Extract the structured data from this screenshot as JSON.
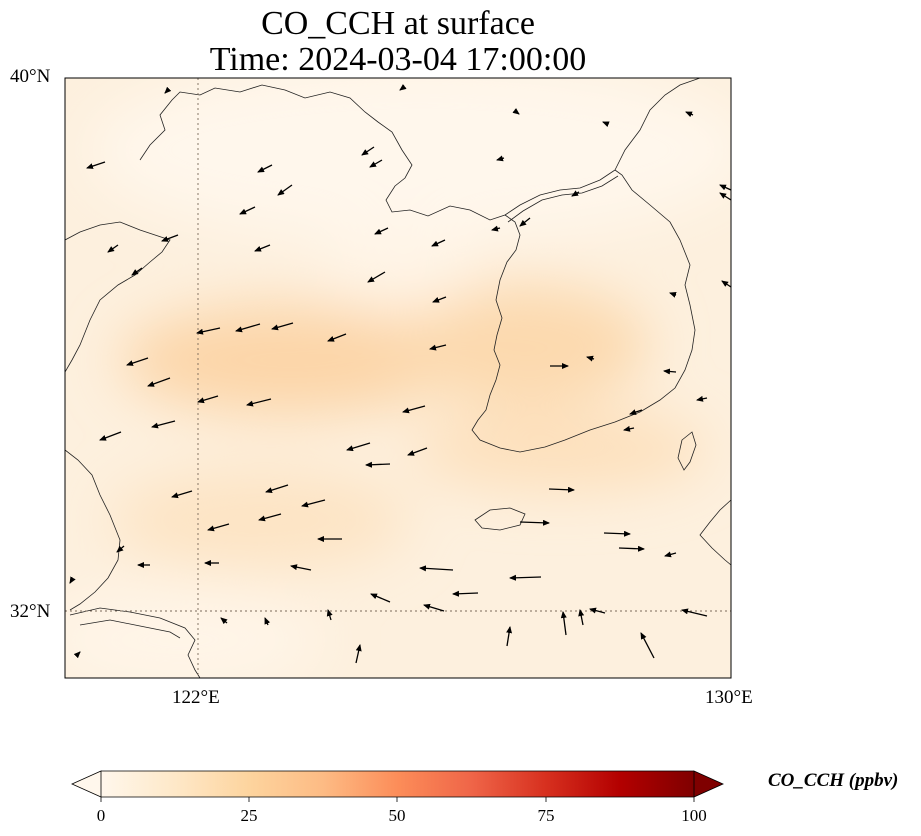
{
  "title": {
    "line1": "CO_CCH at surface",
    "line2": "Time: 2024-03-04 17:00:00"
  },
  "map": {
    "extent": {
      "lon_min": 121,
      "lon_max": 130,
      "lat_min": 31,
      "lat_max": 40
    },
    "lat_ticks": [
      {
        "value": 40,
        "label": "40°N"
      },
      {
        "value": 32,
        "label": "32°N"
      }
    ],
    "lon_ticks": [
      {
        "value": 122,
        "label": "122°E"
      },
      {
        "value": 130,
        "label": "130°E"
      }
    ],
    "gridlines": "dotted at 122°E and 32°N",
    "field": "CO_CCH surface concentration shaded 0–100 ppbv, maximum ≈ 20 ppbv over the Yellow Sea",
    "wind_vectors": "black arrows, mostly westward/southwestward over the sea, northward in the south"
  },
  "colorbar": {
    "label": "CO_CCH (ppbv)",
    "min": 0,
    "max": 100,
    "extend": "both",
    "colormap": "OrRd",
    "ticks": [
      {
        "value": 0,
        "label": "0"
      },
      {
        "value": 25,
        "label": "25"
      },
      {
        "value": 50,
        "label": "50"
      },
      {
        "value": 75,
        "label": "75"
      },
      {
        "value": 100,
        "label": "100"
      }
    ],
    "colors": [
      "#fff7ec",
      "#fee8c8",
      "#fdd49e",
      "#fdbb84",
      "#fc8d59",
      "#ef6548",
      "#d7301f",
      "#b30000",
      "#7f0000"
    ]
  }
}
